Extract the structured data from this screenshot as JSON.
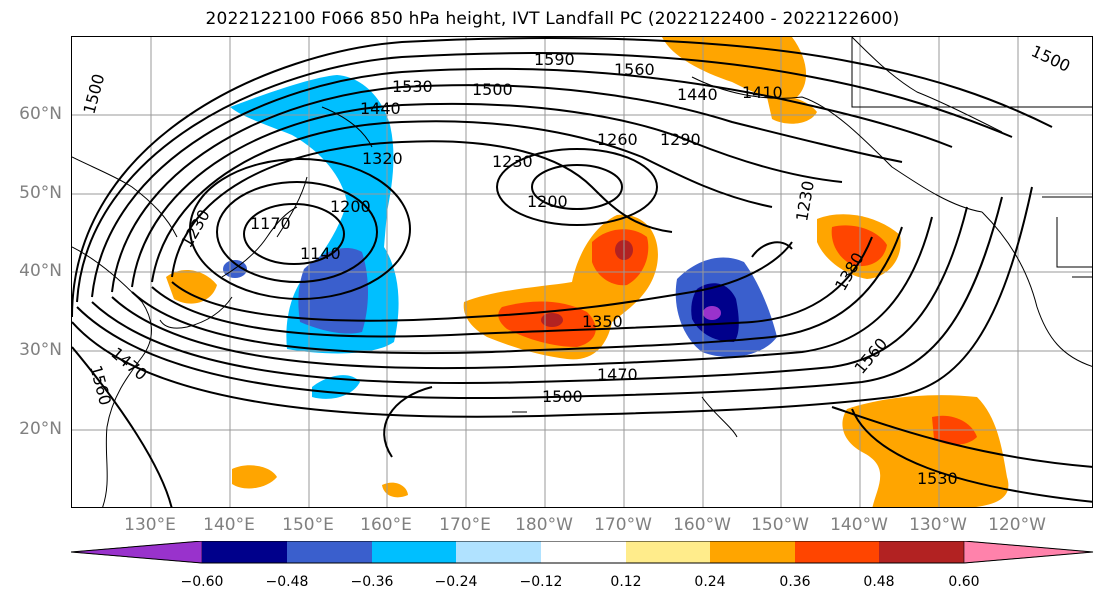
{
  "title": "2022122100 F066 850 hPa height, IVT Landfall PC (2022122400 - 2022122600)",
  "lat_labels": [
    "60°N",
    "50°N",
    "40°N",
    "30°N",
    "20°N"
  ],
  "lon_labels": [
    "130°E",
    "140°E",
    "150°E",
    "160°E",
    "170°E",
    "180°W",
    "170°W",
    "160°W",
    "150°W",
    "140°W",
    "130°W",
    "120°W"
  ],
  "colorbar": {
    "ticks": [
      "−0.60",
      "−0.48",
      "−0.36",
      "−0.24",
      "−0.12",
      "0.12",
      "0.24",
      "0.36",
      "0.48",
      "0.60"
    ],
    "colors": [
      "#9932cc",
      "#00008b",
      "#3a5fcd",
      "#00bfff",
      "#b0e2ff",
      "#ffffff",
      "#ffec8b",
      "#ffa500",
      "#ff4500",
      "#b22222",
      "#ff82ab"
    ]
  },
  "contour_labels": [
    "1500",
    "1530",
    "1590",
    "1560",
    "1500",
    "1440",
    "1410",
    "1440",
    "1500",
    "1320",
    "1230",
    "1260",
    "1290",
    "1200",
    "1200",
    "1170",
    "1230",
    "1140",
    "1230",
    "1380",
    "1350",
    "1470",
    "1500",
    "1470",
    "1560",
    "1560",
    "1530"
  ]
}
